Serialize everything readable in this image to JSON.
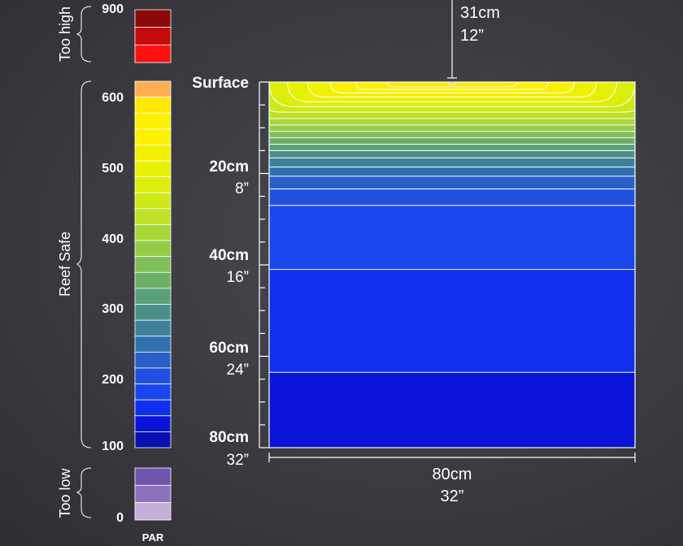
{
  "par_scale": {
    "label": "PAR",
    "ticks": [
      "900",
      "600",
      "500",
      "400",
      "300",
      "200",
      "100",
      "0"
    ],
    "groups": {
      "too_high": "Too high",
      "reef_safe": "Reef Safe",
      "too_low": "Too low"
    },
    "colors": {
      "too_high": [
        "#8a0a0a",
        "#c40a0a",
        "#ff1010"
      ],
      "reef_safe": [
        "#ffb050",
        "#ffe800",
        "#fff000",
        "#fbf100",
        "#f0f000",
        "#e6f000",
        "#dcee0a",
        "#cdea18",
        "#bde228",
        "#a8d838",
        "#94cc48",
        "#80bf58",
        "#6cb068",
        "#5aa078",
        "#4a9088",
        "#3d8098",
        "#3070b0",
        "#2860c8",
        "#1f50e0",
        "#1a46f0",
        "#1030f0",
        "#0a14d8",
        "#0a10b0"
      ],
      "too_low": [
        "#6e54ad",
        "#8e72bd",
        "#c2b0da"
      ]
    }
  },
  "depth_axis": {
    "surface": "Surface",
    "ticks": [
      {
        "cm": "20cm",
        "in": "8”"
      },
      {
        "cm": "40cm",
        "in": "16”"
      },
      {
        "cm": "60cm",
        "in": "24”"
      },
      {
        "cm": "80cm",
        "in": "32”"
      }
    ]
  },
  "width_axis": {
    "cm": "80cm",
    "in": "32”"
  },
  "height_marker": {
    "cm": "31cm",
    "in": "12”"
  },
  "chart_data": {
    "type": "heatmap",
    "x": {
      "label_cm": "80cm",
      "label_in": "32”",
      "range_cm": [
        0,
        80
      ]
    },
    "y": {
      "range_cm": [
        0,
        80
      ],
      "ticks_cm": [
        0,
        20,
        40,
        60,
        80
      ]
    },
    "light_height": {
      "cm": 31,
      "in": 12
    },
    "colorbar": {
      "label": "PAR",
      "ticks": [
        0,
        100,
        200,
        300,
        400,
        500,
        600,
        900
      ]
    },
    "contours": [
      {
        "par": 600,
        "color": "#ffb050",
        "center_depth_cm": 0.5
      },
      {
        "par": 580,
        "color": "#ffe800",
        "center_depth_cm": 1.0
      },
      {
        "par": 560,
        "color": "#fff000",
        "center_depth_cm": 1.6
      },
      {
        "par": 540,
        "color": "#fbf100",
        "center_depth_cm": 2.4
      },
      {
        "par": 520,
        "color": "#f0f000",
        "center_depth_cm": 3.3
      },
      {
        "par": 500,
        "color": "#e6f000",
        "center_depth_cm": 4.3
      },
      {
        "par": 480,
        "color": "#dcee0a",
        "center_depth_cm": 5.4
      },
      {
        "par": 460,
        "color": "#cdea18",
        "center_depth_cm": 6.6
      },
      {
        "par": 440,
        "color": "#bde228",
        "center_depth_cm": 8.0
      },
      {
        "par": 420,
        "color": "#a8d838",
        "center_depth_cm": 9.4
      },
      {
        "par": 400,
        "color": "#94cc48",
        "center_depth_cm": 10.8
      },
      {
        "par": 380,
        "color": "#80bf58",
        "center_depth_cm": 12.2
      },
      {
        "par": 360,
        "color": "#6cb068",
        "center_depth_cm": 13.6
      },
      {
        "par": 340,
        "color": "#5aa078",
        "center_depth_cm": 15.0
      },
      {
        "par": 320,
        "color": "#4a9088",
        "center_depth_cm": 16.6
      },
      {
        "par": 300,
        "color": "#3d8098",
        "center_depth_cm": 18.6
      },
      {
        "par": 280,
        "color": "#3070b0",
        "center_depth_cm": 20.6
      },
      {
        "par": 260,
        "color": "#2860c8",
        "center_depth_cm": 23.4
      },
      {
        "par": 240,
        "color": "#1f50e0",
        "center_depth_cm": 27.0
      },
      {
        "par": 200,
        "color": "#1a46f0",
        "center_depth_cm": 41.0
      },
      {
        "par": 150,
        "color": "#1030f0",
        "center_depth_cm": 63.5
      },
      {
        "par": 100,
        "color": "#0a14d8",
        "center_depth_cm": 80.0
      }
    ]
  }
}
